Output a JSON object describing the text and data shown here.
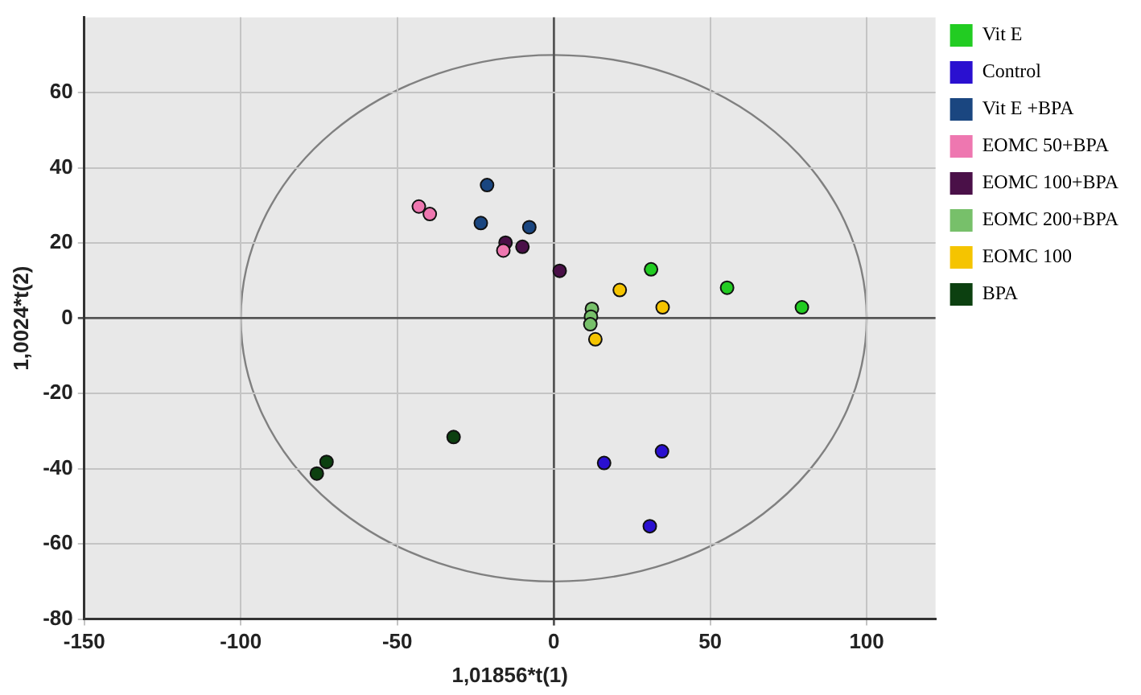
{
  "chart_data": {
    "type": "scatter",
    "xlabel": "1,01856*t(1)",
    "ylabel": "1,0024*t(2)",
    "xlim": [
      -150,
      122
    ],
    "ylim": [
      -80,
      80
    ],
    "xticks": [
      -150,
      -100,
      -50,
      0,
      50,
      100
    ],
    "yticks": [
      -80,
      -60,
      -40,
      -20,
      0,
      20,
      40,
      60
    ],
    "grid": true,
    "legend": "right",
    "marker": "circle",
    "series": [
      {
        "name": "Vit E",
        "color": "#22cc22",
        "x": [
          31.1,
          55.4,
          79.3
        ],
        "values": [
          13.0,
          8.1,
          2.9
        ]
      },
      {
        "name": "Control",
        "color": "#2a10d0",
        "x": [
          16.1,
          34.6,
          30.7
        ],
        "values": [
          -38.5,
          -35.4,
          -55.3
        ]
      },
      {
        "name": "Vit E +BPA",
        "color": "#1a4680",
        "x": [
          -21.3,
          -23.3,
          -7.8
        ],
        "values": [
          35.4,
          25.3,
          24.2
        ]
      },
      {
        "name": "EOMC 50+BPA",
        "color": "#ee77b0",
        "x": [
          -43.1,
          -39.6,
          -16.1
        ],
        "values": [
          29.7,
          27.7,
          18.0
        ]
      },
      {
        "name": "EOMC 100+BPA",
        "color": "#4a1048",
        "x": [
          -15.4,
          -10.0,
          1.9
        ],
        "values": [
          20.1,
          19.0,
          12.6
        ]
      },
      {
        "name": "EOMC 200+BPA",
        "color": "#77c06a",
        "x": [
          12.2,
          11.9,
          11.7
        ],
        "values": [
          2.5,
          0.4,
          -1.6
        ]
      },
      {
        "name": "EOMC 100",
        "color": "#f5c400",
        "x": [
          21.1,
          34.8,
          13.3
        ],
        "values": [
          7.5,
          2.9,
          -5.6
        ]
      },
      {
        "name": "BPA",
        "color": "#0c4010",
        "x": [
          -32.0,
          -72.6,
          -75.7
        ],
        "values": [
          -31.6,
          -38.2,
          -41.3
        ]
      }
    ]
  }
}
